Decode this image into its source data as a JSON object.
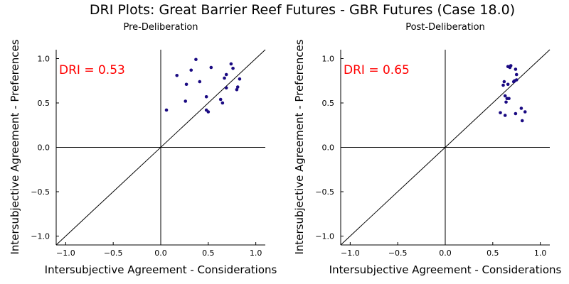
{
  "title": "DRI Plots: Great Barrier Reef Futures - GBR Futures (Case 18.0)",
  "colors": {
    "point": "#1a0a82",
    "dri_text": "#ff0000",
    "axis": "#000000"
  },
  "chart_data": [
    {
      "type": "scatter",
      "subtitle": "Pre-Deliberation",
      "xlabel": "Intersubjective Agreement - Considerations",
      "ylabel": "Intersubjective Agreement - Preferences",
      "xlim": [
        -1.1,
        1.1
      ],
      "ylim": [
        -1.1,
        1.1
      ],
      "xticks": [
        -1.0,
        -0.5,
        0.0,
        0.5,
        1.0
      ],
      "yticks": [
        -1.0,
        -0.5,
        0.0,
        0.5,
        1.0
      ],
      "xtick_labels": [
        "−1.0",
        "−0.5",
        "0.0",
        "0.5",
        "1.0"
      ],
      "ytick_labels": [
        "−1.0",
        "−0.5",
        "0.0",
        "0.5",
        "1.0"
      ],
      "annotation": "DRI = 0.53",
      "reference_lines": [
        "x=0",
        "y=0",
        "y=x"
      ],
      "grid": false,
      "points": [
        [
          0.06,
          0.42
        ],
        [
          0.17,
          0.81
        ],
        [
          0.26,
          0.52
        ],
        [
          0.27,
          0.71
        ],
        [
          0.32,
          0.87
        ],
        [
          0.37,
          0.99
        ],
        [
          0.41,
          0.74
        ],
        [
          0.48,
          0.57
        ],
        [
          0.48,
          0.42
        ],
        [
          0.5,
          0.4
        ],
        [
          0.53,
          0.9
        ],
        [
          0.63,
          0.54
        ],
        [
          0.65,
          0.5
        ],
        [
          0.67,
          0.78
        ],
        [
          0.69,
          0.82
        ],
        [
          0.69,
          0.67
        ],
        [
          0.74,
          0.94
        ],
        [
          0.76,
          0.89
        ],
        [
          0.8,
          0.65
        ],
        [
          0.81,
          0.68
        ],
        [
          0.83,
          0.77
        ]
      ]
    },
    {
      "type": "scatter",
      "subtitle": "Post-Deliberation",
      "xlabel": "Intersubjective Agreement - Considerations",
      "ylabel": "Intersubjective Agreement - Preferences",
      "xlim": [
        -1.1,
        1.1
      ],
      "ylim": [
        -1.1,
        1.1
      ],
      "xticks": [
        -1.0,
        -0.5,
        0.0,
        0.5,
        1.0
      ],
      "yticks": [
        -1.0,
        -0.5,
        0.0,
        0.5,
        1.0
      ],
      "xtick_labels": [
        "−1.0",
        "−0.5",
        "0.0",
        "0.5",
        "1.0"
      ],
      "ytick_labels": [
        "−1.0",
        "−0.5",
        "0.0",
        "0.5",
        "1.0"
      ],
      "annotation": "DRI = 0.65",
      "reference_lines": [
        "x=0",
        "y=0",
        "y=x"
      ],
      "grid": false,
      "points": [
        [
          0.58,
          0.39
        ],
        [
          0.61,
          0.7
        ],
        [
          0.62,
          0.74
        ],
        [
          0.63,
          0.58
        ],
        [
          0.63,
          0.36
        ],
        [
          0.64,
          0.51
        ],
        [
          0.65,
          0.55
        ],
        [
          0.66,
          0.71
        ],
        [
          0.66,
          0.91
        ],
        [
          0.67,
          0.55
        ],
        [
          0.68,
          0.9
        ],
        [
          0.69,
          0.92
        ],
        [
          0.72,
          0.74
        ],
        [
          0.73,
          0.75
        ],
        [
          0.74,
          0.88
        ],
        [
          0.74,
          0.38
        ],
        [
          0.75,
          0.82
        ],
        [
          0.75,
          0.76
        ],
        [
          0.8,
          0.44
        ],
        [
          0.81,
          0.3
        ],
        [
          0.84,
          0.4
        ]
      ]
    }
  ]
}
